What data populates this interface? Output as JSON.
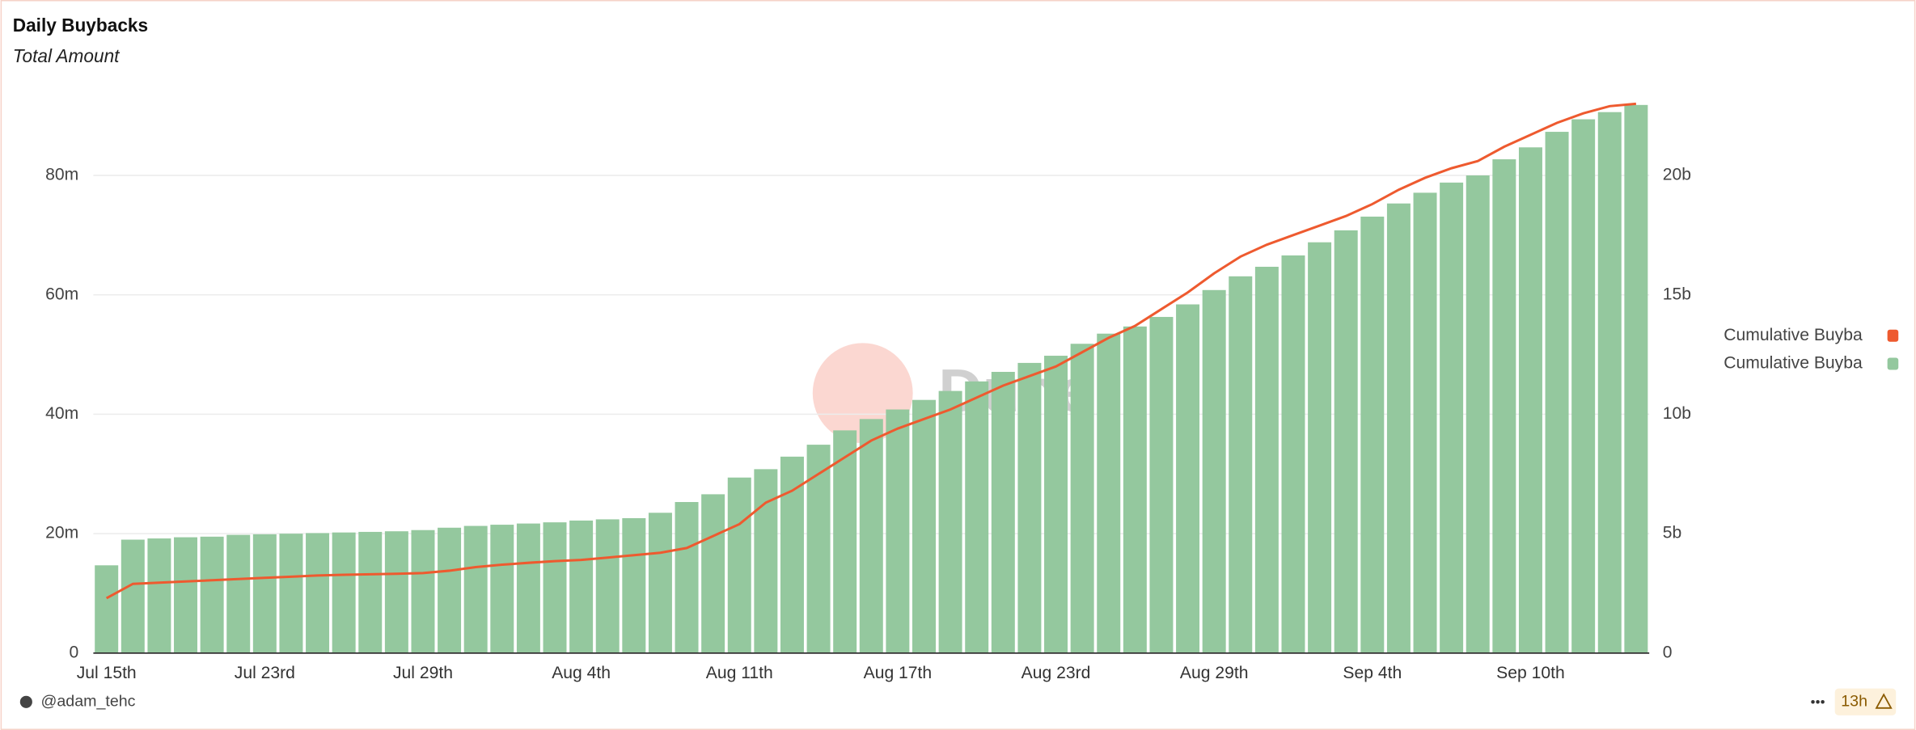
{
  "chart_data": {
    "type": "bar_line",
    "title": "Daily Buybacks",
    "subtitle": "Total Amount",
    "categories": [
      "Jul 15th",
      null,
      null,
      null,
      null,
      null,
      "Jul 23rd",
      null,
      null,
      null,
      null,
      null,
      "Jul 29th",
      null,
      null,
      null,
      null,
      null,
      "Aug 4th",
      null,
      null,
      null,
      null,
      null,
      "Aug 11th",
      null,
      null,
      null,
      null,
      null,
      "Aug 17th",
      null,
      null,
      null,
      null,
      null,
      "Aug 23rd",
      null,
      null,
      null,
      null,
      null,
      "Aug 29th",
      null,
      null,
      null,
      null,
      null,
      "Sep 4th",
      null,
      null,
      null,
      null,
      null,
      "Sep 10th",
      null,
      null,
      null,
      null
    ],
    "series": [
      {
        "name": "Cumulative Buyba",
        "color": "#ee5a2f",
        "axis": "y2",
        "kind": "line",
        "values": [
          2.3,
          2.9,
          2.95,
          3.0,
          3.05,
          3.1,
          3.15,
          3.2,
          3.25,
          3.28,
          3.3,
          3.32,
          3.35,
          3.45,
          3.6,
          3.7,
          3.78,
          3.85,
          3.9,
          4.0,
          4.1,
          4.2,
          4.4,
          4.9,
          5.4,
          6.3,
          6.8,
          7.5,
          8.2,
          8.9,
          9.4,
          9.8,
          10.2,
          10.7,
          11.2,
          11.6,
          12.0,
          12.6,
          13.2,
          13.7,
          14.4,
          15.1,
          15.9,
          16.6,
          17.1,
          17.5,
          17.9,
          18.3,
          18.8,
          19.4,
          19.9,
          20.3,
          20.6,
          21.2,
          21.7,
          22.2,
          22.6,
          22.9,
          23.0
        ]
      },
      {
        "name": "Cumulative Buyba",
        "color": "#94c89e",
        "kind": "bar",
        "values": [
          14.7,
          19,
          19.2,
          19.4,
          19.5,
          19.8,
          19.9,
          20,
          20.1,
          20.2,
          20.3,
          20.4,
          20.6,
          21,
          21.3,
          21.5,
          21.7,
          21.9,
          22.2,
          22.4,
          22.6,
          23.5,
          25.3,
          26.6,
          29.4,
          30.8,
          32.9,
          34.9,
          37.3,
          39.2,
          40.8,
          42.4,
          43.9,
          45.5,
          47.1,
          48.6,
          49.8,
          51.8,
          53.5,
          54.7,
          56.3,
          58.4,
          60.8,
          63.1,
          64.7,
          66.6,
          68.8,
          70.8,
          73.1,
          75.3,
          77.1,
          78.8,
          80,
          82.7,
          84.7,
          87.3,
          89.4,
          90.6,
          91.8
        ]
      }
    ],
    "ylim": [
      0,
      92
    ],
    "yticks": [
      0,
      {
        "value": 20,
        "label": "20m"
      },
      {
        "value": 40,
        "label": "40m"
      },
      {
        "value": 60,
        "label": "60m"
      },
      {
        "value": 80,
        "label": "80m"
      }
    ],
    "y2lim": [
      0,
      23
    ],
    "y2ticks": [
      0,
      {
        "value": 5,
        "label": "5b"
      },
      {
        "value": 10,
        "label": "10b"
      },
      {
        "value": 15,
        "label": "15b"
      },
      {
        "value": 20,
        "label": "20b"
      }
    ],
    "grid": true,
    "legend": "right",
    "watermark": "Dune"
  },
  "footer": {
    "author": "@adam_tehc",
    "age": "13h"
  }
}
